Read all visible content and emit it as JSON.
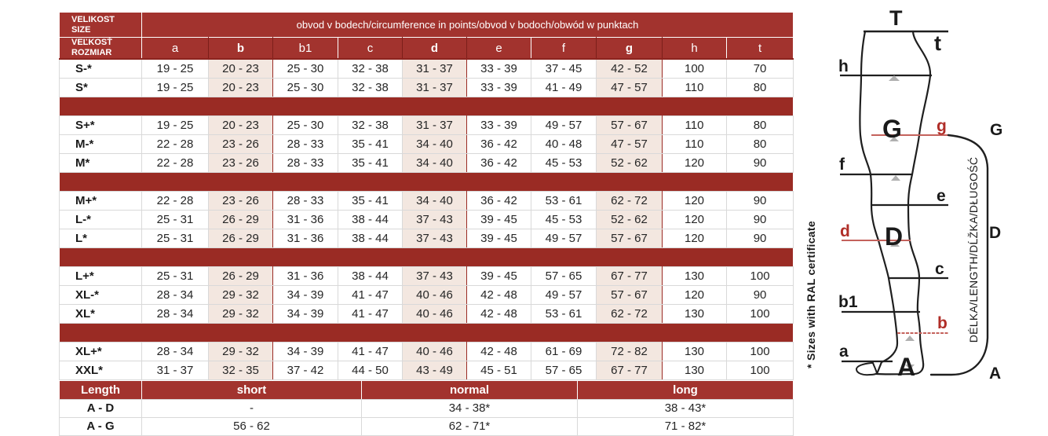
{
  "colors": {
    "header_red": "#A2332E",
    "dark_red_border": "#8C241F",
    "group_separator_red": "#9A2B24",
    "highlight_pink": "#F3E7E0",
    "grid_gray": "#d9d9d9",
    "red_line": "#C4625C",
    "red_label": "#B02E28"
  },
  "size_table": {
    "header_left_top": [
      "VELIKOST",
      "SIZE"
    ],
    "header_left_bottom": [
      "VEĽKOSŤ",
      "ROZMIAR"
    ],
    "title": "obvod v bodech/circumference in points/obvod v bodoch/obwód w punktach",
    "columns": [
      "a",
      "b",
      "b1",
      "c",
      "d",
      "e",
      "f",
      "g",
      "h",
      "t"
    ],
    "highlight_columns": [
      "b",
      "d",
      "g"
    ],
    "rows": [
      {
        "size": "S-*",
        "values": [
          "19 - 25",
          "20 - 23",
          "25 - 30",
          "32 - 38",
          "31 - 37",
          "33 - 39",
          "37 - 45",
          "42 - 52",
          "100",
          "70"
        ]
      },
      {
        "size": "S*",
        "values": [
          "19 - 25",
          "20 - 23",
          "25 - 30",
          "32 - 38",
          "31 - 37",
          "33 - 39",
          "41 - 49",
          "47 - 57",
          "110",
          "80"
        ],
        "group_end": true
      },
      {
        "size": "S+*",
        "values": [
          "19 - 25",
          "20 - 23",
          "25 - 30",
          "32 - 38",
          "31 - 37",
          "33 - 39",
          "49 - 57",
          "57 - 67",
          "110",
          "80"
        ]
      },
      {
        "size": "M-*",
        "values": [
          "22 - 28",
          "23 - 26",
          "28 - 33",
          "35 - 41",
          "34 - 40",
          "36 - 42",
          "40 - 48",
          "47 - 57",
          "110",
          "80"
        ]
      },
      {
        "size": "M*",
        "values": [
          "22 - 28",
          "23 - 26",
          "28 - 33",
          "35 - 41",
          "34 - 40",
          "36 - 42",
          "45 - 53",
          "52 - 62",
          "120",
          "90"
        ],
        "group_end": true
      },
      {
        "size": "M+*",
        "values": [
          "22 - 28",
          "23 - 26",
          "28 - 33",
          "35 - 41",
          "34 - 40",
          "36 - 42",
          "53 - 61",
          "62 - 72",
          "120",
          "90"
        ]
      },
      {
        "size": "L-*",
        "values": [
          "25 - 31",
          "26 - 29",
          "31 - 36",
          "38 - 44",
          "37 - 43",
          "39 - 45",
          "45 - 53",
          "52 - 62",
          "120",
          "90"
        ]
      },
      {
        "size": "L*",
        "values": [
          "25 - 31",
          "26 - 29",
          "31 - 36",
          "38 - 44",
          "37 - 43",
          "39 - 45",
          "49 - 57",
          "57 - 67",
          "120",
          "90"
        ],
        "group_end": true
      },
      {
        "size": "L+*",
        "values": [
          "25 - 31",
          "26 - 29",
          "31 - 36",
          "38 - 44",
          "37 - 43",
          "39 - 45",
          "57 - 65",
          "67 - 77",
          "130",
          "100"
        ]
      },
      {
        "size": "XL-*",
        "values": [
          "28 - 34",
          "29 - 32",
          "34 - 39",
          "41 - 47",
          "40 - 46",
          "42 - 48",
          "49 - 57",
          "57 - 67",
          "120",
          "90"
        ]
      },
      {
        "size": "XL*",
        "values": [
          "28 - 34",
          "29 - 32",
          "34 - 39",
          "41 - 47",
          "40 - 46",
          "42 - 48",
          "53 - 61",
          "62 - 72",
          "130",
          "100"
        ],
        "group_end": true
      },
      {
        "size": "XL+*",
        "values": [
          "28 - 34",
          "29 - 32",
          "34 - 39",
          "41 - 47",
          "40 - 46",
          "42 - 48",
          "61 - 69",
          "72 - 82",
          "130",
          "100"
        ]
      },
      {
        "size": "XXL*",
        "values": [
          "31 - 37",
          "32 - 35",
          "37 - 42",
          "44 - 50",
          "43 - 49",
          "45 - 51",
          "57 - 65",
          "67 - 77",
          "130",
          "100"
        ]
      }
    ]
  },
  "length_table": {
    "header": [
      "Length",
      "short",
      "normal",
      "long"
    ],
    "rows": [
      {
        "label": "A - D",
        "values": [
          "-",
          "34 - 38*",
          "38 - 43*"
        ]
      },
      {
        "label": "A - G",
        "values": [
          "56 - 62",
          "62 - 71*",
          "71 - 82*"
        ]
      }
    ]
  },
  "footnote": "* Sizes with RAL certificate",
  "diagram": {
    "axis_label": "DÉLKA/LENGTH/DĹŽKA/DŁUGOŚĆ",
    "labels": {
      "T": "T",
      "t": "t",
      "h": "h",
      "G_inner": "G",
      "g": "g",
      "G_right": "G",
      "f": "f",
      "e": "e",
      "d": "d",
      "D_inner": "D",
      "D_right": "D",
      "c": "c",
      "b1": "b1",
      "b": "b",
      "a": "a",
      "A_inner": "A",
      "A_right": "A"
    }
  }
}
